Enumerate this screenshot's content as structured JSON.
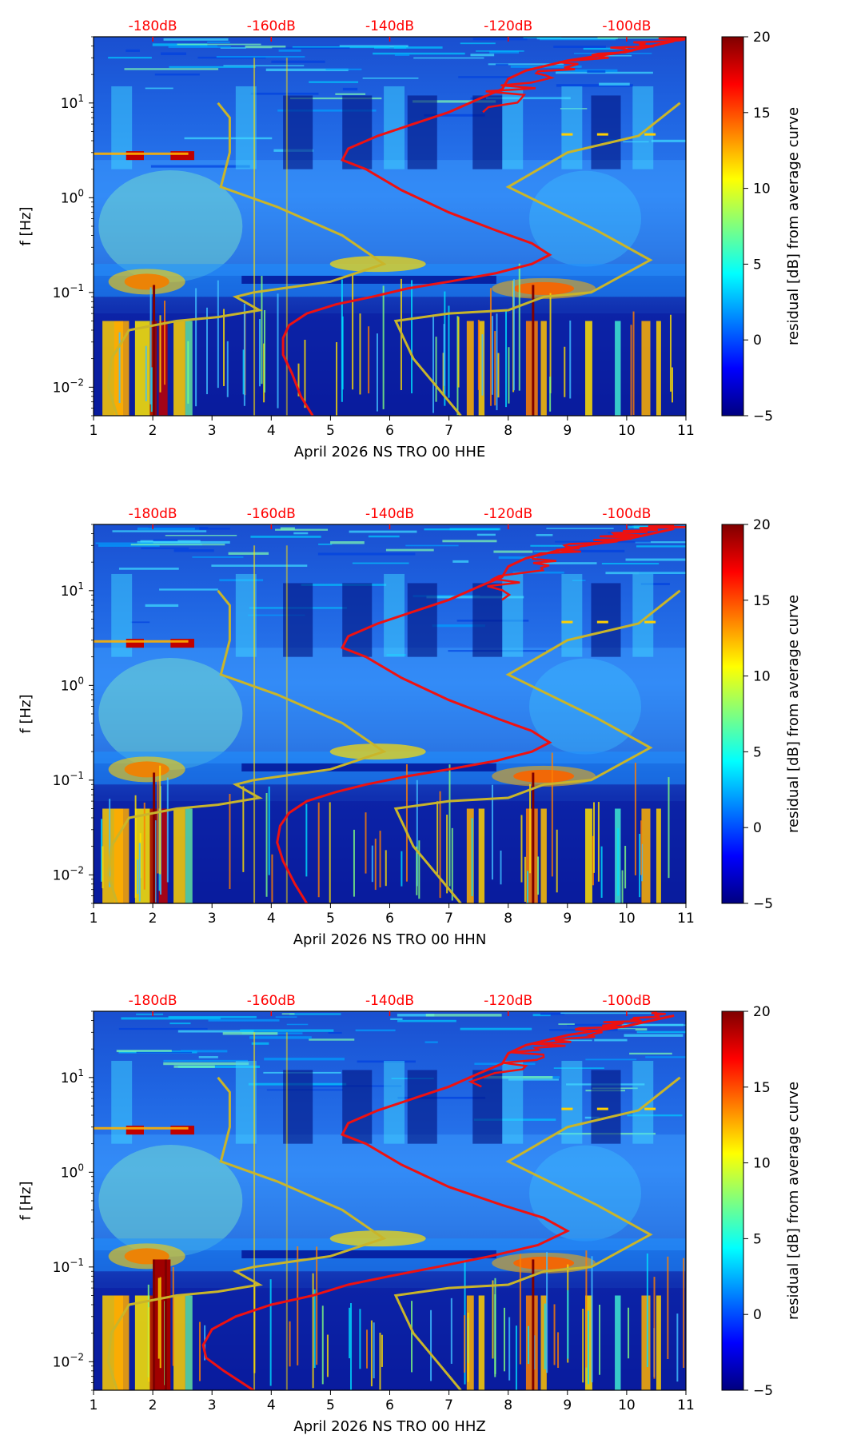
{
  "colors": {
    "red_curve": "#ee1111",
    "model_curve": "#c9b52a",
    "top_axis_text": "#ff0000",
    "background_mid": "#1f5fd8",
    "band_hot": "#a00000"
  },
  "colormap": [
    "#00007f",
    "#0000ff",
    "#007fff",
    "#00ffff",
    "#7fff7f",
    "#ffff00",
    "#ff7f00",
    "#ff0000",
    "#7f0000"
  ],
  "chart_data": [
    {
      "type": "heatmap",
      "xlabel": "April 2026 NS TRO 00 HHE",
      "ylabel": "f [Hz]",
      "x_ticks": [
        "1",
        "2",
        "3",
        "4",
        "5",
        "6",
        "7",
        "8",
        "9",
        "10",
        "11"
      ],
      "xlim": [
        1,
        11
      ],
      "ylim": [
        0.005,
        50
      ],
      "y_ticks": [
        {
          "mant": "10",
          "exp": "−2"
        },
        {
          "mant": "10",
          "exp": "−1"
        },
        {
          "mant": "10",
          "exp": "0"
        },
        {
          "mant": "10",
          "exp": "1"
        }
      ],
      "top_axis_ticks": [
        "-180dB",
        "-160dB",
        "-140dB",
        "-120dB",
        "-100dB"
      ],
      "top_axis_positions": [
        2,
        4,
        6,
        8,
        10
      ],
      "colorbar_label": "residual [dB] from average curve",
      "colorbar_ticks": [
        "20",
        "15",
        "10",
        "5",
        "0",
        "−5"
      ],
      "colorbar_range": [
        -5,
        20
      ],
      "red_curve": {
        "x": [
          4.7,
          4.5,
          4.35,
          4.2,
          4.2,
          4.3,
          4.6,
          5.1,
          5.7,
          6.3,
          7.0,
          7.8,
          8.4,
          8.7,
          8.4,
          7.8,
          7.0,
          6.2,
          5.6,
          5.2,
          5.3,
          5.8,
          6.4,
          7.0,
          7.5,
          7.9,
          8.0,
          8.3,
          9.0,
          10.0,
          10.8
        ],
        "f": [
          0.005,
          0.008,
          0.014,
          0.022,
          0.033,
          0.045,
          0.06,
          0.075,
          0.09,
          0.11,
          0.13,
          0.16,
          0.2,
          0.25,
          0.33,
          0.45,
          0.7,
          1.2,
          2.0,
          2.5,
          3.3,
          4.5,
          6.0,
          8.0,
          11.0,
          14.0,
          18.0,
          22.0,
          28.0,
          35.0,
          45.0
        ]
      },
      "model_curve": {
        "x": [
          1.4,
          1.25,
          1.3,
          1.6,
          2.4,
          3.1,
          3.8,
          3.4,
          3.7,
          5.0,
          5.9,
          5.2,
          4.1,
          3.15,
          3.3,
          3.3,
          3.1
        ],
        "f": [
          0.005,
          0.01,
          0.02,
          0.04,
          0.05,
          0.055,
          0.065,
          0.09,
          0.1,
          0.13,
          0.2,
          0.4,
          0.8,
          1.3,
          3.0,
          7.0,
          10.0
        ]
      },
      "model_curve_b": {
        "x": [
          7.2,
          6.8,
          6.4,
          6.1,
          7.0,
          8.0,
          8.6,
          9.4,
          10.4,
          9.5,
          8.0,
          9.0,
          10.2,
          10.9
        ],
        "f": [
          0.005,
          0.01,
          0.02,
          0.05,
          0.06,
          0.065,
          0.09,
          0.1,
          0.22,
          0.45,
          1.3,
          3.0,
          4.5,
          10.0
        ]
      },
      "hot_columns": [
        2.0,
        8.4
      ],
      "quiet_columns": [
        4.2,
        5.2,
        6.3,
        7.4,
        9.4
      ]
    },
    {
      "type": "heatmap",
      "xlabel": "April 2026 NS TRO 00 HHN",
      "ylabel": "f [Hz]",
      "x_ticks": [
        "1",
        "2",
        "3",
        "4",
        "5",
        "6",
        "7",
        "8",
        "9",
        "10",
        "11"
      ],
      "xlim": [
        1,
        11
      ],
      "ylim": [
        0.005,
        50
      ],
      "y_ticks": [
        {
          "mant": "10",
          "exp": "−2"
        },
        {
          "mant": "10",
          "exp": "−1"
        },
        {
          "mant": "10",
          "exp": "0"
        },
        {
          "mant": "10",
          "exp": "1"
        }
      ],
      "top_axis_ticks": [
        "-180dB",
        "-160dB",
        "-140dB",
        "-120dB",
        "-100dB"
      ],
      "top_axis_positions": [
        2,
        4,
        6,
        8,
        10
      ],
      "colorbar_label": "residual [dB] from average curve",
      "colorbar_ticks": [
        "20",
        "15",
        "10",
        "5",
        "0",
        "−5"
      ],
      "colorbar_range": [
        -5,
        20
      ],
      "red_curve": {
        "x": [
          4.6,
          4.4,
          4.2,
          4.1,
          4.15,
          4.3,
          4.6,
          5.1,
          5.6,
          6.3,
          7.0,
          7.8,
          8.4,
          8.7,
          8.4,
          7.8,
          7.0,
          6.2,
          5.6,
          5.2,
          5.3,
          5.8,
          6.4,
          7.0,
          7.5,
          7.9,
          8.0,
          8.3,
          9.0,
          10.0,
          10.8
        ],
        "f": [
          0.005,
          0.008,
          0.014,
          0.022,
          0.033,
          0.045,
          0.06,
          0.075,
          0.09,
          0.11,
          0.13,
          0.16,
          0.2,
          0.25,
          0.33,
          0.45,
          0.7,
          1.2,
          2.0,
          2.5,
          3.3,
          4.5,
          6.0,
          8.0,
          11.0,
          14.0,
          18.0,
          22.0,
          28.0,
          35.0,
          45.0
        ]
      },
      "model_curve": {
        "x": [
          1.4,
          1.25,
          1.3,
          1.6,
          2.4,
          3.1,
          3.8,
          3.4,
          3.7,
          5.0,
          5.9,
          5.2,
          4.1,
          3.15,
          3.3,
          3.3,
          3.1
        ],
        "f": [
          0.005,
          0.01,
          0.02,
          0.04,
          0.05,
          0.055,
          0.065,
          0.09,
          0.1,
          0.13,
          0.2,
          0.4,
          0.8,
          1.3,
          3.0,
          7.0,
          10.0
        ]
      },
      "model_curve_b": {
        "x": [
          7.2,
          6.8,
          6.4,
          6.1,
          7.0,
          8.0,
          8.6,
          9.4,
          10.4,
          9.5,
          8.0,
          9.0,
          10.2,
          10.9
        ],
        "f": [
          0.005,
          0.01,
          0.02,
          0.05,
          0.06,
          0.065,
          0.09,
          0.1,
          0.22,
          0.45,
          1.3,
          3.0,
          4.5,
          10.0
        ]
      },
      "hot_columns": [
        2.0,
        8.4
      ],
      "quiet_columns": [
        4.2,
        5.2,
        6.3,
        7.4,
        9.4
      ]
    },
    {
      "type": "heatmap",
      "xlabel": "April 2026 NS TRO 00 HHZ",
      "ylabel": "f [Hz]",
      "x_ticks": [
        "1",
        "2",
        "3",
        "4",
        "5",
        "6",
        "7",
        "8",
        "9",
        "10",
        "11"
      ],
      "xlim": [
        1,
        11
      ],
      "ylim": [
        0.005,
        50
      ],
      "y_ticks": [
        {
          "mant": "10",
          "exp": "−2"
        },
        {
          "mant": "10",
          "exp": "−1"
        },
        {
          "mant": "10",
          "exp": "0"
        },
        {
          "mant": "10",
          "exp": "1"
        }
      ],
      "top_axis_ticks": [
        "-180dB",
        "-160dB",
        "-140dB",
        "-120dB",
        "-100dB"
      ],
      "top_axis_positions": [
        2,
        4,
        6,
        8,
        10
      ],
      "colorbar_label": "residual [dB] from average curve",
      "colorbar_ticks": [
        "20",
        "15",
        "10",
        "5",
        "0",
        "−5"
      ],
      "colorbar_range": [
        -5,
        20
      ],
      "red_curve": {
        "x": [
          3.7,
          3.2,
          2.9,
          2.85,
          3.0,
          3.4,
          4.0,
          4.7,
          5.3,
          6.0,
          6.8,
          7.7,
          8.5,
          9.0,
          8.6,
          7.9,
          7.0,
          6.2,
          5.6,
          5.2,
          5.3,
          5.8,
          6.4,
          7.0,
          7.5,
          7.9,
          8.0,
          8.3,
          9.0,
          10.0,
          10.8
        ],
        "f": [
          0.005,
          0.008,
          0.011,
          0.015,
          0.022,
          0.03,
          0.04,
          0.05,
          0.065,
          0.08,
          0.1,
          0.13,
          0.17,
          0.24,
          0.33,
          0.45,
          0.7,
          1.2,
          2.0,
          2.5,
          3.3,
          4.5,
          6.0,
          8.0,
          11.0,
          14.0,
          18.0,
          22.0,
          28.0,
          35.0,
          45.0
        ]
      },
      "model_curve": {
        "x": [
          1.4,
          1.25,
          1.3,
          1.6,
          2.4,
          3.1,
          3.8,
          3.4,
          3.7,
          5.0,
          5.9,
          5.2,
          4.1,
          3.15,
          3.3,
          3.3,
          3.1
        ],
        "f": [
          0.005,
          0.01,
          0.02,
          0.04,
          0.05,
          0.055,
          0.065,
          0.09,
          0.1,
          0.13,
          0.2,
          0.4,
          0.8,
          1.3,
          3.0,
          7.0,
          10.0
        ]
      },
      "model_curve_b": {
        "x": [
          7.2,
          6.8,
          6.4,
          6.1,
          7.0,
          8.0,
          8.6,
          9.4,
          10.4,
          9.5,
          8.0,
          9.0,
          10.2,
          10.9
        ],
        "f": [
          0.005,
          0.01,
          0.02,
          0.05,
          0.06,
          0.065,
          0.09,
          0.1,
          0.22,
          0.45,
          1.3,
          3.0,
          4.5,
          10.0
        ]
      },
      "hot_columns": [
        2.0,
        2.2,
        8.4
      ],
      "quiet_columns": [
        4.2,
        5.2,
        6.3,
        7.4,
        9.4
      ]
    }
  ]
}
